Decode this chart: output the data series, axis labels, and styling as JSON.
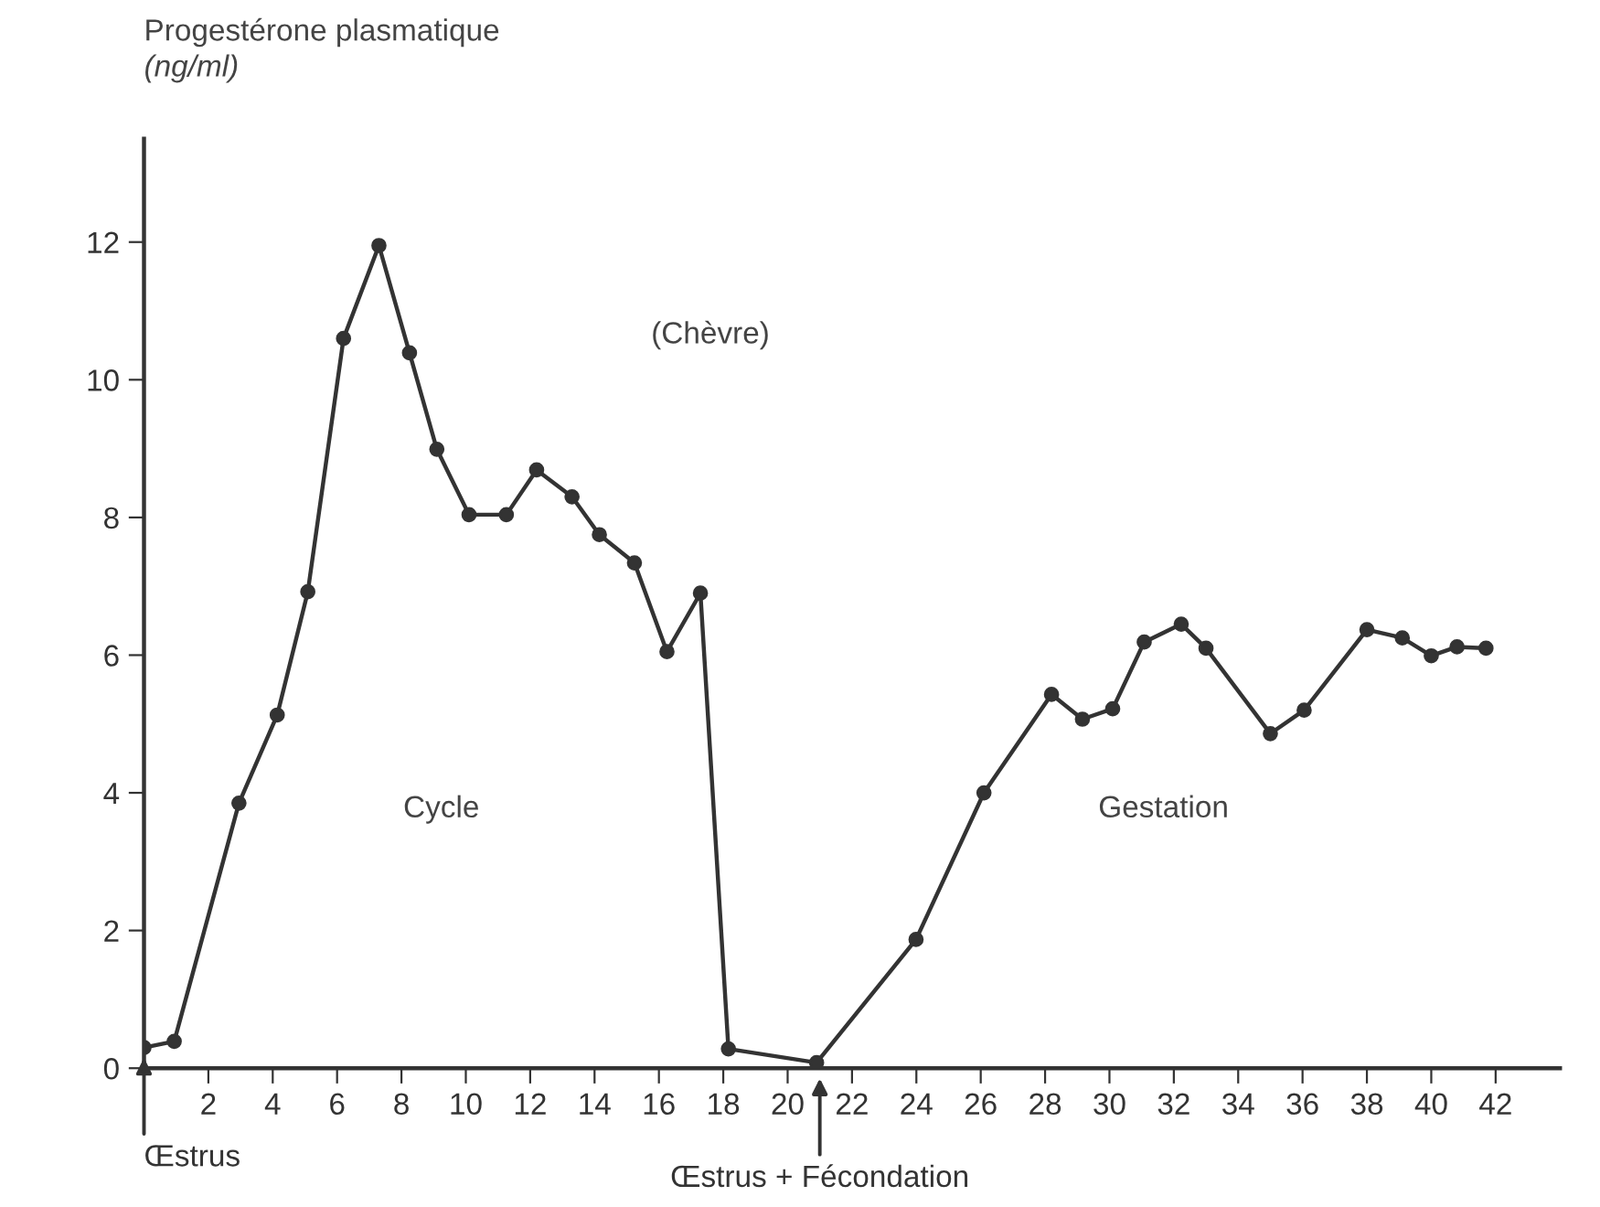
{
  "chart_data": {
    "type": "line",
    "ylabel": "Progestérone plasmatique\n(ng/ml)",
    "x": [
      0,
      0.94,
      2.95,
      4.14,
      5.09,
      6.2,
      7.3,
      8.25,
      9.1,
      10.1,
      11.26,
      12.2,
      13.3,
      14.15,
      15.24,
      16.25,
      17.29,
      18.16,
      20.9,
      23.99,
      26.1,
      28.2,
      29.16,
      30.1,
      31.08,
      32.23,
      33.0,
      35.0,
      36.05,
      38.0,
      39.1,
      40.0,
      40.8,
      41.7
    ],
    "series": [
      {
        "color": "#333333",
        "values": [
          0.3,
          0.39,
          3.85,
          5.13,
          6.92,
          10.6,
          11.95,
          10.39,
          8.99,
          8.04,
          8.04,
          8.69,
          8.3,
          7.75,
          7.34,
          6.05,
          6.9,
          0.28,
          0.08,
          1.87,
          4.0,
          5.43,
          5.07,
          5.22,
          6.19,
          6.45,
          6.1,
          4.86,
          5.2,
          6.37,
          6.25,
          5.99,
          6.12,
          6.1
        ]
      }
    ],
    "xlim": [
      0,
      44
    ],
    "xticks": [
      2,
      4,
      6,
      8,
      10,
      12,
      14,
      16,
      18,
      20,
      22,
      24,
      26,
      28,
      30,
      32,
      34,
      36,
      38,
      40,
      42
    ],
    "ylim": [
      0,
      13.5
    ],
    "yticks": [
      0,
      2,
      4,
      6,
      8,
      10,
      12
    ],
    "grid": false,
    "legend": false,
    "marker": "circle",
    "line_style": "solid",
    "annotations": [
      {
        "text": "Œstrus",
        "x": 0,
        "y": 0.3
      },
      {
        "text": "Œstrus + Fécondation",
        "x": 21,
        "y": 0
      },
      "(Chèvre)",
      "Cycle",
      "Gestation"
    ]
  }
}
